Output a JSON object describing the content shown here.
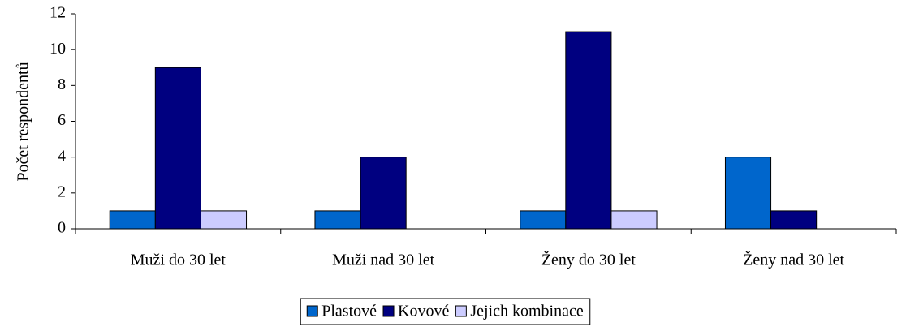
{
  "chart_data": {
    "type": "bar",
    "ylabel": "Počet respondentů",
    "categories": [
      "Muži do 30 let",
      "Muži nad 30 let",
      "Ženy do 30 let",
      "Ženy nad 30 let"
    ],
    "series": [
      {
        "name": "Plastové",
        "color": "#0066cc",
        "values": [
          1,
          1,
          1,
          4
        ]
      },
      {
        "name": "Kovové",
        "color": "#000080",
        "values": [
          9,
          4,
          11,
          1
        ]
      },
      {
        "name": "Jejich kombinace",
        "color": "#ccccff",
        "values": [
          1,
          0,
          1,
          0
        ]
      }
    ],
    "ylim": [
      0,
      12
    ],
    "yticks": [
      0,
      2,
      4,
      6,
      8,
      10,
      12
    ],
    "grid": false,
    "legend": "bottom"
  }
}
